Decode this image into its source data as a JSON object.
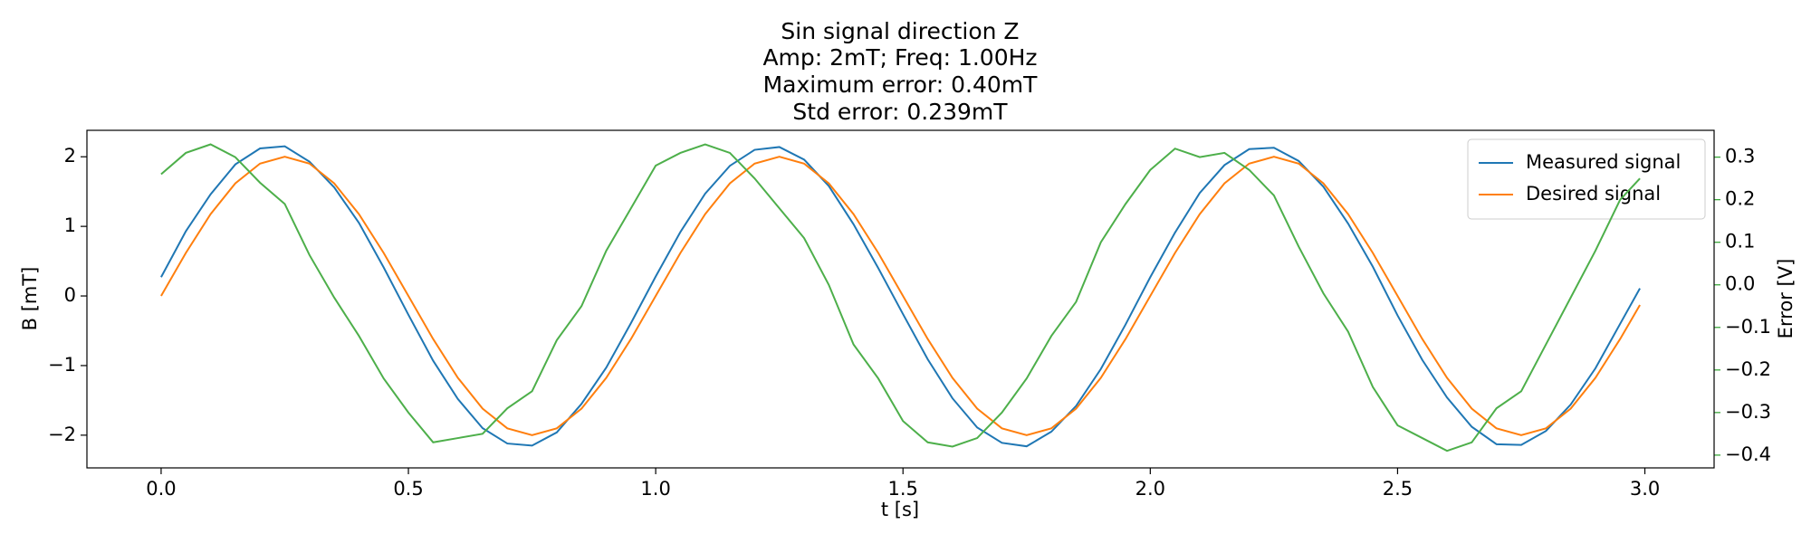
{
  "chart_data": {
    "type": "line",
    "title": [
      "Sin signal direction Z",
      "Amp: 2mT; Freq: 1.00Hz",
      "Maximum error: 0.40mT",
      "Std error: 0.239mT"
    ],
    "x_label": "t [s]",
    "y_label": "B [mT]",
    "y2_label": "Error [V]",
    "y2_color": "#2ca02c",
    "legend": "upper right",
    "x": [
      0,
      0.05,
      0.1,
      0.15,
      0.2,
      0.25,
      0.3,
      0.35,
      0.4,
      0.45,
      0.5,
      0.55,
      0.6,
      0.65,
      0.7,
      0.75,
      0.8,
      0.85,
      0.9,
      0.95,
      1,
      1.05,
      1.1,
      1.15,
      1.2,
      1.25,
      1.3,
      1.35,
      1.4,
      1.45,
      1.5,
      1.55,
      1.6,
      1.65,
      1.7,
      1.75,
      1.8,
      1.85,
      1.9,
      1.95,
      2,
      2.05,
      2.1,
      2.15,
      2.2,
      2.25,
      2.3,
      2.35,
      2.4,
      2.45,
      2.5,
      2.55,
      2.6,
      2.65,
      2.7,
      2.75,
      2.8,
      2.85,
      2.9,
      2.95,
      2.99
    ],
    "xlim": [
      -0.15,
      3.14
    ],
    "xticks": [
      {
        "value": 0,
        "label": "0.0"
      },
      0.5,
      {
        "value": 1,
        "label": "1.0"
      },
      1.5,
      {
        "value": 2,
        "label": "2.0"
      },
      2.5,
      {
        "value": 3,
        "label": "3.0"
      }
    ],
    "ylim": [
      -2.47,
      2.38
    ],
    "yticks": [
      {
        "value": -2,
        "label": "−2"
      },
      {
        "value": -1,
        "label": "−1"
      },
      0,
      1,
      2
    ],
    "y2lim": [
      -0.43,
      0.363
    ],
    "y2ticks": [
      {
        "value": -0.4,
        "label": "−0.4"
      },
      {
        "value": -0.3,
        "label": "−0.3"
      },
      {
        "value": -0.2,
        "label": "−0.2"
      },
      {
        "value": -0.1,
        "label": "−0.1"
      },
      {
        "value": 0,
        "label": "0.0"
      },
      0.1,
      0.2,
      0.3
    ],
    "series": [
      {
        "name": "Measured signal",
        "color": "#1f77b4",
        "values": [
          0.27,
          0.93,
          1.46,
          1.89,
          2.12,
          2.15,
          1.93,
          1.56,
          1.05,
          0.41,
          -0.27,
          -0.93,
          -1.48,
          -1.9,
          -2.12,
          -2.15,
          -1.96,
          -1.55,
          -1.03,
          -0.39,
          0.28,
          0.92,
          1.47,
          1.87,
          2.1,
          2.14,
          1.96,
          1.58,
          1.03,
          0.4,
          -0.26,
          -0.91,
          -1.47,
          -1.89,
          -2.11,
          -2.16,
          -1.95,
          -1.58,
          -1.05,
          -0.41,
          0.27,
          0.91,
          1.48,
          1.88,
          2.11,
          2.13,
          1.94,
          1.57,
          1.04,
          0.42,
          -0.28,
          -0.92,
          -1.46,
          -1.88,
          -2.13,
          -2.14,
          -1.94,
          -1.56,
          -1.04,
          -0.4,
          0.11
        ]
      },
      {
        "name": "Desired signal",
        "color": "#ff7f0e",
        "values": [
          0,
          0.618,
          1.176,
          1.618,
          1.902,
          2,
          1.902,
          1.618,
          1.176,
          0.618,
          0,
          -0.618,
          -1.176,
          -1.618,
          -1.902,
          -2,
          -1.902,
          -1.618,
          -1.176,
          -0.618,
          0,
          0.618,
          1.176,
          1.618,
          1.902,
          2,
          1.902,
          1.618,
          1.176,
          0.618,
          0,
          -0.618,
          -1.176,
          -1.618,
          -1.902,
          -2,
          -1.902,
          -1.618,
          -1.176,
          -0.618,
          0,
          0.618,
          1.176,
          1.618,
          1.902,
          2,
          1.902,
          1.618,
          1.176,
          0.618,
          0,
          -0.618,
          -1.176,
          -1.618,
          -1.902,
          -2,
          -1.902,
          -1.618,
          -1.176,
          -0.618,
          -0.13
        ]
      },
      {
        "color": "#4daf4a",
        "axis": "y2",
        "values": [
          0.26,
          0.31,
          0.33,
          0.3,
          0.24,
          0.19,
          0.07,
          -0.03,
          -0.12,
          -0.22,
          -0.3,
          -0.37,
          -0.36,
          -0.35,
          -0.29,
          -0.25,
          -0.13,
          -0.05,
          0.08,
          0.18,
          0.28,
          0.31,
          0.33,
          0.31,
          0.25,
          0.18,
          0.11,
          0.0,
          -0.14,
          -0.22,
          -0.32,
          -0.37,
          -0.38,
          -0.36,
          -0.3,
          -0.22,
          -0.12,
          -0.04,
          0.1,
          0.19,
          0.27,
          0.32,
          0.3,
          0.31,
          0.27,
          0.21,
          0.09,
          -0.02,
          -0.11,
          -0.24,
          -0.33,
          -0.36,
          -0.39,
          -0.37,
          -0.29,
          -0.25,
          -0.14,
          -0.03,
          0.08,
          0.2,
          0.25
        ]
      }
    ]
  }
}
